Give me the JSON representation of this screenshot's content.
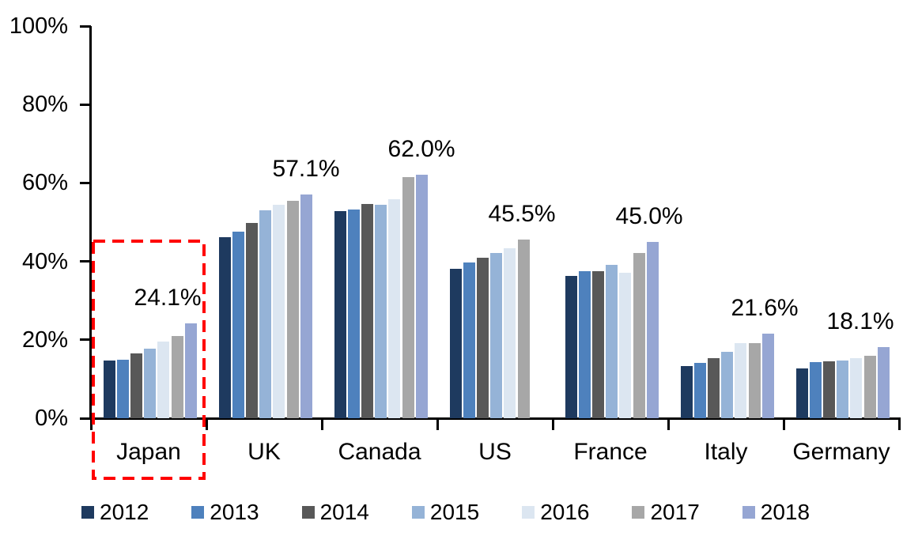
{
  "chart_data": {
    "type": "bar",
    "title": "",
    "xlabel": "",
    "ylabel": "",
    "categories": [
      "Japan",
      "UK",
      "Canada",
      "US",
      "France",
      "Italy",
      "Germany"
    ],
    "series": [
      {
        "name": "2012",
        "color": "#1E3A5F",
        "values": [
          14.8,
          46.1,
          52.9,
          38.1,
          36.3,
          13.3,
          12.7
        ]
      },
      {
        "name": "2013",
        "color": "#4E81BD",
        "values": [
          14.9,
          47.6,
          53.2,
          39.8,
          37.5,
          14.1,
          14.3
        ]
      },
      {
        "name": "2014",
        "color": "#585858",
        "values": [
          16.5,
          49.8,
          54.7,
          41.0,
          37.4,
          15.4,
          14.5
        ]
      },
      {
        "name": "2015",
        "color": "#95B3D7",
        "values": [
          17.8,
          53.0,
          54.4,
          42.1,
          39.2,
          16.9,
          14.8
        ]
      },
      {
        "name": "2016",
        "color": "#DCE6F1",
        "values": [
          19.6,
          54.4,
          55.9,
          43.4,
          37.1,
          19.1,
          15.4
        ]
      },
      {
        "name": "2017",
        "color": "#A7A7A7",
        "values": [
          20.9,
          55.4,
          61.4,
          45.5,
          42.2,
          19.2,
          16.0
        ]
      },
      {
        "name": "2018",
        "color": "#96A6D3",
        "values": [
          24.1,
          57.1,
          62.0,
          null,
          45.0,
          21.6,
          18.1
        ]
      }
    ],
    "annotations": [
      {
        "category": "Japan",
        "text": "24.1%"
      },
      {
        "category": "UK",
        "text": "57.1%"
      },
      {
        "category": "Canada",
        "text": "62.0%"
      },
      {
        "category": "US",
        "text": "45.5%"
      },
      {
        "category": "France",
        "text": "45.0%"
      },
      {
        "category": "Italy",
        "text": "21.6%"
      },
      {
        "category": "Germany",
        "text": "18.1%"
      }
    ],
    "yticks": [
      "0%",
      "20%",
      "40%",
      "60%",
      "80%",
      "100%"
    ],
    "ylim": [
      0,
      100
    ],
    "grid": false,
    "legend_position": "bottom",
    "highlight": {
      "category": "Japan",
      "style": "dashed-rectangle",
      "color": "#FF0000"
    }
  }
}
